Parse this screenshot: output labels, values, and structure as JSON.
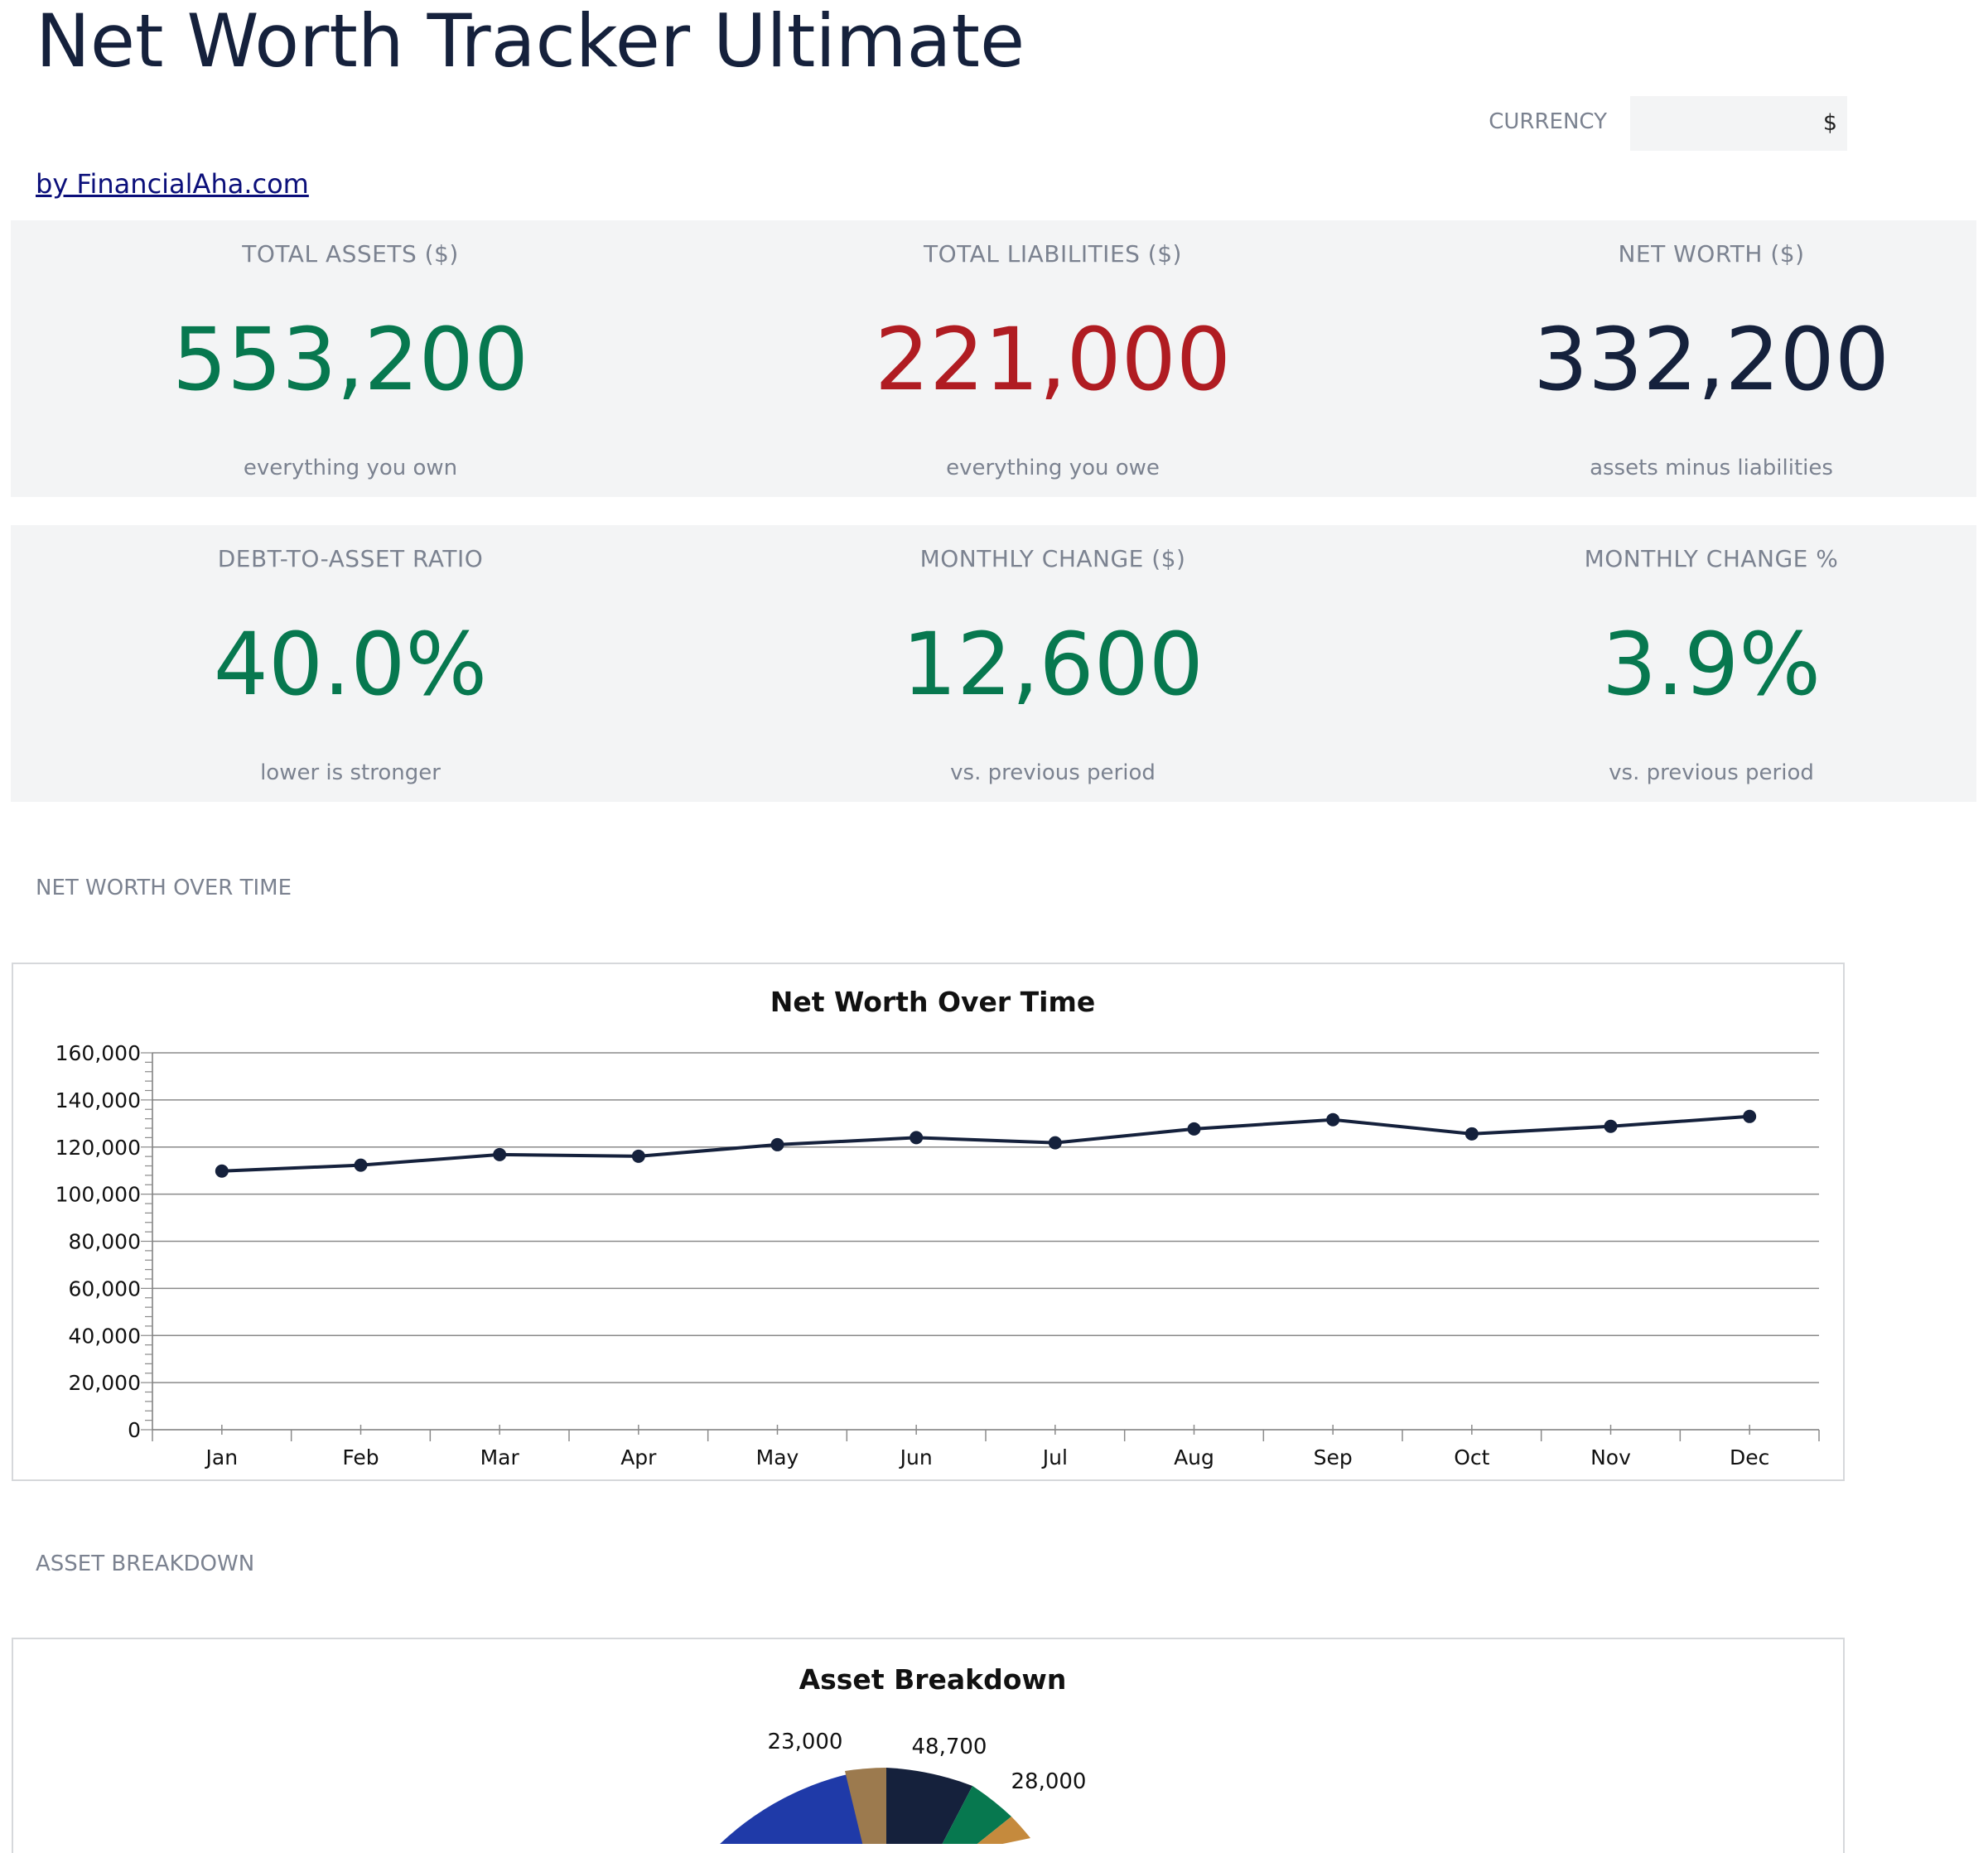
{
  "header": {
    "title": "Net Worth Tracker Ultimate",
    "currency_label": "CURRENCY",
    "currency_value": "$",
    "link_text": "by FinancialAha.com"
  },
  "kpis_row1": [
    {
      "label": "TOTAL ASSETS ($)",
      "value": "553,200",
      "sub": "everything you own",
      "color": "#07784f"
    },
    {
      "label": "TOTAL LIABILITIES ($)",
      "value": "221,000",
      "sub": "everything you owe",
      "color": "#b01c22"
    },
    {
      "label": "NET WORTH ($)",
      "value": "332,200",
      "sub": "assets minus liabilities",
      "color": "#15213c"
    }
  ],
  "kpis_row2": [
    {
      "label": "DEBT-TO-ASSET RATIO",
      "value": "40.0%",
      "sub": "lower is stronger",
      "color": "#07784f"
    },
    {
      "label": "MONTHLY CHANGE ($)",
      "value": "12,600",
      "sub": "vs. previous period",
      "color": "#07784f"
    },
    {
      "label": "MONTHLY CHANGE %",
      "value": "3.9%",
      "sub": "vs. previous period",
      "color": "#07784f"
    }
  ],
  "sections": {
    "net_worth_label": "NET WORTH OVER TIME",
    "asset_breakdown_label": "ASSET BREAKDOWN"
  },
  "chart_data": [
    {
      "type": "line",
      "title": "Net Worth Over Time",
      "categories": [
        "Jan",
        "Feb",
        "Mar",
        "Apr",
        "May",
        "Jun",
        "Jul",
        "Aug",
        "Sep",
        "Oct",
        "Nov",
        "Dec"
      ],
      "series": [
        {
          "values": [
            109800,
            112300,
            116800,
            116100,
            121000,
            124000,
            121800,
            127700,
            131600,
            125600,
            128800,
            133000
          ]
        }
      ],
      "ylim": [
        0,
        160000
      ],
      "yticks": [
        "0",
        "20,000",
        "40,000",
        "60,000",
        "80,000",
        "100,000",
        "120,000",
        "140,000",
        "160,000"
      ],
      "grid": true,
      "line_color": "#15213c"
    },
    {
      "type": "pie",
      "title": "Asset Breakdown",
      "visible_labels": [
        "23,000",
        "48,700",
        "28,000"
      ],
      "colors": [
        "#15213c",
        "#07784f",
        "#c58a3d",
        "#1f3aa8",
        "#9c7a4e"
      ]
    }
  ]
}
